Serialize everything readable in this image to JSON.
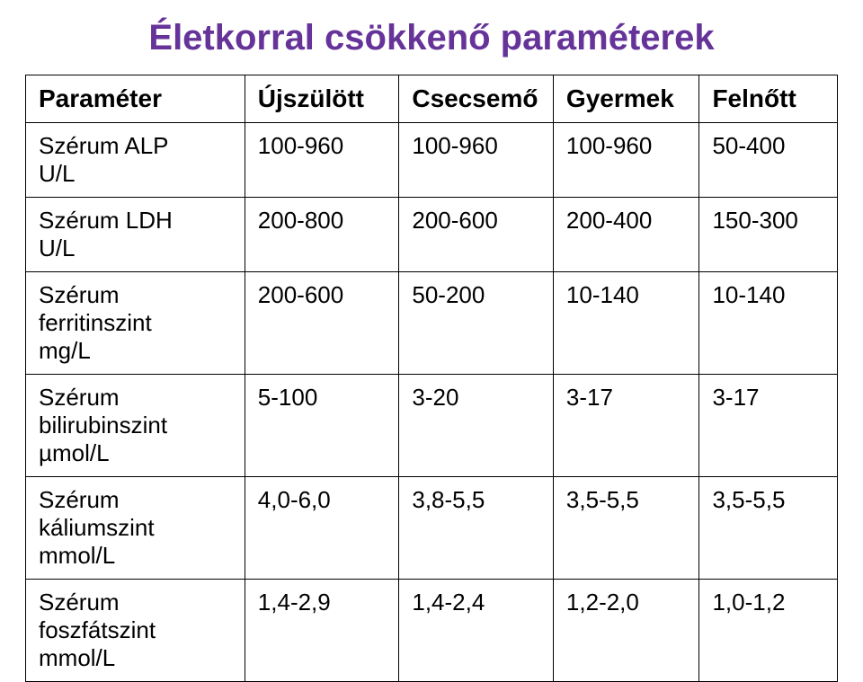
{
  "title": "Életkorral csökkenő paraméterek",
  "table": {
    "columns": [
      "Paraméter",
      "Újszülött",
      "Csecsemő",
      "Gyermek",
      "Felnőtt"
    ],
    "rows": [
      {
        "label": "Szérum ALP\nU/L",
        "v1": "100-960",
        "v2": "100-960",
        "v3": "100-960",
        "v4": "50-400"
      },
      {
        "label": "Szérum LDH\nU/L",
        "v1": "200-800",
        "v2": "200-600",
        "v3": "200-400",
        "v4": "150-300"
      },
      {
        "label": "Szérum\nferritinszint\nmg/L",
        "v1": "200-600",
        "v2": "50-200",
        "v3": "10-140",
        "v4": " 10-140"
      },
      {
        "label": "Szérum\nbilirubinszint\nµmol/L",
        "v1": "5-100",
        "v2": "3-20",
        "v3": "3-17",
        "v4": "3-17"
      },
      {
        "label": "Szérum\nkáliumszint\nmmol/L",
        "v1": "4,0-6,0",
        "v2": "3,8-5,5",
        "v3": "3,5-5,5",
        "v4": "3,5-5,5"
      },
      {
        "label": "Szérum\nfoszfátszint\nmmol/L",
        "v1": "1,4-2,9",
        "v2": "1,4-2,4",
        "v3": "1,2-2,0",
        "v4": "1,0-1,2"
      }
    ],
    "colors": {
      "title": "#663399",
      "border": "#000000",
      "text": "#000000",
      "background": "#ffffff"
    },
    "font": "Comic Sans MS",
    "title_fontsize": 40,
    "header_fontsize": 28,
    "cell_fontsize": 26
  }
}
